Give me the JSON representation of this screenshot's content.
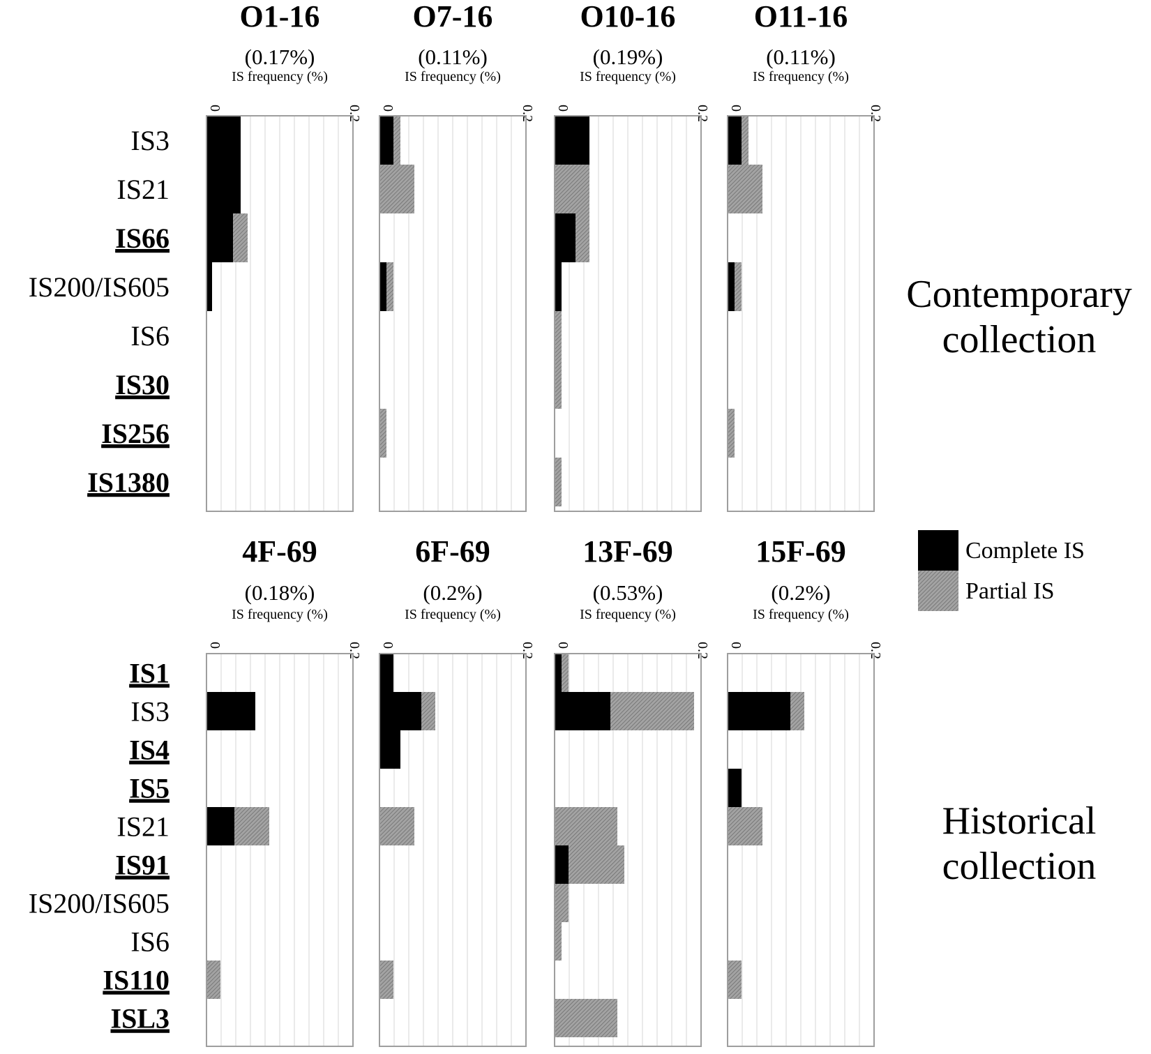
{
  "colors": {
    "complete": "#000000",
    "partial": "#9a9a9a",
    "frame": "#9e9e9e",
    "grid": "#d6d6d6"
  },
  "legend": {
    "items": [
      {
        "label": "Complete IS",
        "key": "complete"
      },
      {
        "label": "Partial IS",
        "key": "partial"
      }
    ]
  },
  "sections": [
    {
      "title_lines": [
        "Contemporary",
        "collection"
      ]
    },
    {
      "title_lines": [
        "Historical",
        "collection"
      ]
    }
  ],
  "chart_data": [
    {
      "type": "bar",
      "orientation": "horizontal",
      "stacked": true,
      "title": "O1-16",
      "subtitle": "(0.17%)",
      "xlabel": "IS frequency (%)",
      "xlim": [
        0,
        0.2
      ],
      "xticks": [
        "0",
        "0.2"
      ],
      "grid": true,
      "categories": [
        "IS3",
        "IS21",
        "IS66",
        "IS200/IS605",
        "IS6",
        "IS30",
        "IS256",
        "IS1380"
      ],
      "bold_categories": [
        "IS66",
        "IS30",
        "IS256",
        "IS1380"
      ],
      "series": [
        {
          "name": "Complete IS",
          "values": [
            0.049,
            0.049,
            0.038,
            0.008,
            0,
            0,
            0,
            0
          ]
        },
        {
          "name": "Partial IS",
          "values": [
            0,
            0,
            0.021,
            0,
            0,
            0,
            0,
            0
          ]
        }
      ]
    },
    {
      "type": "bar",
      "orientation": "horizontal",
      "stacked": true,
      "title": "O7-16",
      "subtitle": "(0.11%)",
      "xlabel": "IS frequency (%)",
      "xlim": [
        0,
        0.2
      ],
      "xticks": [
        "0",
        "0.2"
      ],
      "grid": true,
      "categories": [
        "IS3",
        "IS21",
        "IS66",
        "IS200/IS605",
        "IS6",
        "IS30",
        "IS256",
        "IS1380"
      ],
      "bold_categories": [
        "IS66",
        "IS30",
        "IS256",
        "IS1380"
      ],
      "series": [
        {
          "name": "Complete IS",
          "values": [
            0.02,
            0,
            0,
            0.01,
            0,
            0,
            0,
            0
          ]
        },
        {
          "name": "Partial IS",
          "values": [
            0.01,
            0.05,
            0,
            0.01,
            0,
            0,
            0.01,
            0
          ]
        }
      ]
    },
    {
      "type": "bar",
      "orientation": "horizontal",
      "stacked": true,
      "title": "O10-16",
      "subtitle": "(0.19%)",
      "xlabel": "IS frequency (%)",
      "xlim": [
        0,
        0.2
      ],
      "xticks": [
        "0",
        "0.2"
      ],
      "grid": true,
      "categories": [
        "IS3",
        "IS21",
        "IS66",
        "IS200/IS605",
        "IS6",
        "IS30",
        "IS256",
        "IS1380"
      ],
      "bold_categories": [
        "IS66",
        "IS30",
        "IS256",
        "IS1380"
      ],
      "series": [
        {
          "name": "Complete IS",
          "values": [
            0.05,
            0,
            0.03,
            0.01,
            0,
            0,
            0,
            0
          ]
        },
        {
          "name": "Partial IS",
          "values": [
            0,
            0.05,
            0.02,
            0,
            0.01,
            0.01,
            0,
            0.01
          ]
        }
      ]
    },
    {
      "type": "bar",
      "orientation": "horizontal",
      "stacked": true,
      "title": "O11-16",
      "subtitle": "(0.11%)",
      "xlabel": "IS frequency (%)",
      "xlim": [
        0,
        0.2
      ],
      "xticks": [
        "0",
        "0.2"
      ],
      "grid": true,
      "categories": [
        "IS3",
        "IS21",
        "IS66",
        "IS200/IS605",
        "IS6",
        "IS30",
        "IS256",
        "IS1380"
      ],
      "bold_categories": [
        "IS66",
        "IS30",
        "IS256",
        "IS1380"
      ],
      "series": [
        {
          "name": "Complete IS",
          "values": [
            0.02,
            0,
            0,
            0.01,
            0,
            0,
            0,
            0
          ]
        },
        {
          "name": "Partial IS",
          "values": [
            0.01,
            0.05,
            0,
            0.01,
            0,
            0,
            0.01,
            0
          ]
        }
      ]
    },
    {
      "type": "bar",
      "orientation": "horizontal",
      "stacked": true,
      "title": "4F-69",
      "subtitle": "(0.18%)",
      "xlabel": "IS frequency (%)",
      "xlim": [
        0,
        0.2
      ],
      "xticks": [
        "0",
        "0.2"
      ],
      "grid": true,
      "categories": [
        "IS1",
        "IS3",
        "IS4",
        "IS5",
        "IS21",
        "IS91",
        "IS200/IS605",
        "IS6",
        "IS110",
        "ISL3"
      ],
      "bold_categories": [
        "IS1",
        "IS4",
        "IS5",
        "IS91",
        "IS110",
        "ISL3"
      ],
      "series": [
        {
          "name": "Complete IS",
          "values": [
            0,
            0.07,
            0,
            0,
            0.04,
            0,
            0,
            0,
            0,
            0
          ]
        },
        {
          "name": "Partial IS",
          "values": [
            0,
            0,
            0,
            0,
            0.05,
            0,
            0,
            0,
            0.02,
            0
          ]
        }
      ]
    },
    {
      "type": "bar",
      "orientation": "horizontal",
      "stacked": true,
      "title": "6F-69",
      "subtitle": "(0.2%)",
      "xlabel": "IS frequency (%)",
      "xlim": [
        0,
        0.2
      ],
      "xticks": [
        "0",
        "0.2"
      ],
      "grid": true,
      "categories": [
        "IS1",
        "IS3",
        "IS4",
        "IS5",
        "IS21",
        "IS91",
        "IS200/IS605",
        "IS6",
        "IS110",
        "ISL3"
      ],
      "bold_categories": [
        "IS1",
        "IS4",
        "IS5",
        "IS91",
        "IS110",
        "ISL3"
      ],
      "series": [
        {
          "name": "Complete IS",
          "values": [
            0.02,
            0.06,
            0.03,
            0,
            0,
            0,
            0,
            0,
            0,
            0
          ]
        },
        {
          "name": "Partial IS",
          "values": [
            0,
            0.02,
            0,
            0,
            0.05,
            0,
            0,
            0,
            0.02,
            0
          ]
        }
      ]
    },
    {
      "type": "bar",
      "orientation": "horizontal",
      "stacked": true,
      "title": "13F-69",
      "subtitle": "(0.53%)",
      "xlabel": "IS frequency (%)",
      "xlim": [
        0,
        0.2
      ],
      "xticks": [
        "0",
        "0.2"
      ],
      "grid": true,
      "categories": [
        "IS1",
        "IS3",
        "IS4",
        "IS5",
        "IS21",
        "IS91",
        "IS200/IS605",
        "IS6",
        "IS110",
        "ISL3"
      ],
      "bold_categories": [
        "IS1",
        "IS4",
        "IS5",
        "IS91",
        "IS110",
        "ISL3"
      ],
      "series": [
        {
          "name": "Complete IS",
          "values": [
            0.01,
            0.08,
            0,
            0,
            0,
            0.02,
            0,
            0,
            0,
            0
          ]
        },
        {
          "name": "Partial IS",
          "values": [
            0.01,
            0.12,
            0,
            0,
            0.09,
            0.08,
            0.02,
            0.01,
            0,
            0.09
          ]
        }
      ]
    },
    {
      "type": "bar",
      "orientation": "horizontal",
      "stacked": true,
      "title": "15F-69",
      "subtitle": "(0.2%)",
      "xlabel": "IS frequency (%)",
      "xlim": [
        0,
        0.2
      ],
      "xticks": [
        "0",
        "0.2"
      ],
      "grid": true,
      "categories": [
        "IS1",
        "IS3",
        "IS4",
        "IS5",
        "IS21",
        "IS91",
        "IS200/IS605",
        "IS6",
        "IS110",
        "ISL3"
      ],
      "bold_categories": [
        "IS1",
        "IS4",
        "IS5",
        "IS91",
        "IS110",
        "ISL3"
      ],
      "series": [
        {
          "name": "Complete IS",
          "values": [
            0,
            0.09,
            0,
            0.02,
            0,
            0,
            0,
            0,
            0,
            0
          ]
        },
        {
          "name": "Partial IS",
          "values": [
            0,
            0.02,
            0,
            0,
            0.05,
            0,
            0,
            0,
            0.02,
            0
          ]
        }
      ]
    }
  ]
}
